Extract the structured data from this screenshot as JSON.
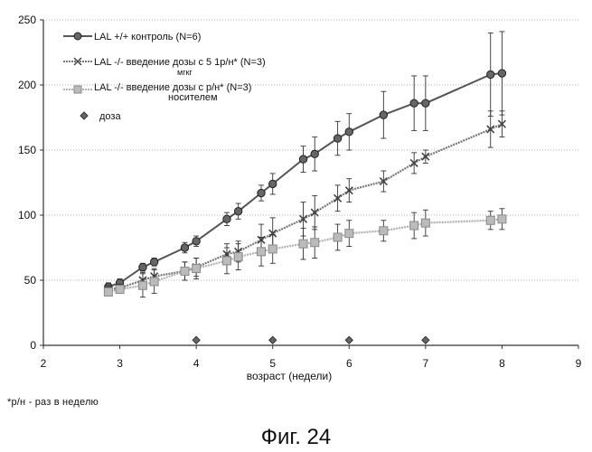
{
  "chart_data": {
    "type": "line",
    "xlabel": "возраст (недели)",
    "ylabel": "",
    "xlim": [
      2,
      9
    ],
    "ylim": [
      0,
      250
    ],
    "x_ticks": [
      2,
      3,
      4,
      5,
      6,
      7,
      8,
      9
    ],
    "y_ticks": [
      0,
      50,
      100,
      150,
      200,
      250
    ],
    "grid": "horizontal",
    "legend_position": "top-left",
    "series": [
      {
        "legend_label": "LAL +/+ контроль (N=6)",
        "color": "#555555",
        "marker": "circle",
        "points": [
          {
            "x": 2.85,
            "y": 45,
            "err": 3
          },
          {
            "x": 3.0,
            "y": 48,
            "err": 3
          },
          {
            "x": 3.3,
            "y": 60,
            "err": 3
          },
          {
            "x": 3.45,
            "y": 64,
            "err": 3
          },
          {
            "x": 3.85,
            "y": 75,
            "err": 4
          },
          {
            "x": 4.0,
            "y": 80,
            "err": 4
          },
          {
            "x": 4.4,
            "y": 97,
            "err": 5
          },
          {
            "x": 4.55,
            "y": 103,
            "err": 6
          },
          {
            "x": 4.85,
            "y": 117,
            "err": 6
          },
          {
            "x": 5.0,
            "y": 124,
            "err": 8
          },
          {
            "x": 5.4,
            "y": 143,
            "err": 10
          },
          {
            "x": 5.55,
            "y": 147,
            "err": 13
          },
          {
            "x": 5.85,
            "y": 159,
            "err": 13
          },
          {
            "x": 6.0,
            "y": 164,
            "err": 14
          },
          {
            "x": 6.45,
            "y": 177,
            "err": 18
          },
          {
            "x": 6.85,
            "y": 186,
            "err": 21
          },
          {
            "x": 7.0,
            "y": 186,
            "err": 21
          },
          {
            "x": 7.85,
            "y": 208,
            "err": 32
          },
          {
            "x": 8.0,
            "y": 209,
            "err": 32
          }
        ]
      },
      {
        "legend_label": "LAL -/- введение дозы с 5 мгкг 1р/н* (N=3)",
        "color": "#777777",
        "marker": "cross",
        "points": [
          {
            "x": 2.85,
            "y": 43,
            "err": 3
          },
          {
            "x": 3.0,
            "y": 44,
            "err": 3
          },
          {
            "x": 3.3,
            "y": 50,
            "err": 6
          },
          {
            "x": 3.45,
            "y": 53,
            "err": 6
          },
          {
            "x": 3.85,
            "y": 57,
            "err": 7
          },
          {
            "x": 4.0,
            "y": 60,
            "err": 7
          },
          {
            "x": 4.4,
            "y": 70,
            "err": 8
          },
          {
            "x": 4.55,
            "y": 72,
            "err": 8
          },
          {
            "x": 4.85,
            "y": 81,
            "err": 12
          },
          {
            "x": 5.0,
            "y": 86,
            "err": 12
          },
          {
            "x": 5.4,
            "y": 97,
            "err": 13
          },
          {
            "x": 5.55,
            "y": 102,
            "err": 13
          },
          {
            "x": 5.85,
            "y": 113,
            "err": 10
          },
          {
            "x": 6.0,
            "y": 119,
            "err": 9
          },
          {
            "x": 6.45,
            "y": 126,
            "err": 8
          },
          {
            "x": 6.85,
            "y": 140,
            "err": 8
          },
          {
            "x": 7.0,
            "y": 145,
            "err": 5
          },
          {
            "x": 7.85,
            "y": 166,
            "err": 14
          },
          {
            "x": 8.0,
            "y": 170,
            "err": 10
          }
        ]
      },
      {
        "legend_label": "LAL -/- введение дозы с носителем р/н* (N=3)",
        "color": "#b0b0b0",
        "marker": "square",
        "points": [
          {
            "x": 2.85,
            "y": 41,
            "err": 3
          },
          {
            "x": 3.0,
            "y": 43,
            "err": 3
          },
          {
            "x": 3.3,
            "y": 46,
            "err": 9
          },
          {
            "x": 3.45,
            "y": 49,
            "err": 9
          },
          {
            "x": 3.85,
            "y": 57,
            "err": 7
          },
          {
            "x": 4.0,
            "y": 59,
            "err": 8
          },
          {
            "x": 4.4,
            "y": 65,
            "err": 10
          },
          {
            "x": 4.55,
            "y": 68,
            "err": 10
          },
          {
            "x": 4.85,
            "y": 72,
            "err": 11
          },
          {
            "x": 5.0,
            "y": 74,
            "err": 11
          },
          {
            "x": 5.4,
            "y": 78,
            "err": 12
          },
          {
            "x": 5.55,
            "y": 79,
            "err": 12
          },
          {
            "x": 5.85,
            "y": 83,
            "err": 10
          },
          {
            "x": 6.0,
            "y": 86,
            "err": 10
          },
          {
            "x": 6.45,
            "y": 88,
            "err": 8
          },
          {
            "x": 6.85,
            "y": 92,
            "err": 10
          },
          {
            "x": 7.0,
            "y": 94,
            "err": 10
          },
          {
            "x": 7.85,
            "y": 96,
            "err": 7
          },
          {
            "x": 8.0,
            "y": 97,
            "err": 8
          }
        ]
      }
    ],
    "dose_markers": {
      "legend_label": "доза",
      "color": "#666666",
      "marker": "diamond",
      "x": [
        4,
        5,
        6,
        7
      ],
      "y": 4
    }
  },
  "legend": {
    "items": [
      {
        "line1": "LAL +/+ контроль (N=6)",
        "line2": ""
      },
      {
        "line1": "LAL -/-  введение дозы с 5 1р/н* (N=3)",
        "line2": "мгкг"
      },
      {
        "line1": "LAL -/-  введение дозы с р/н* (N=3)",
        "line2": "носителем"
      },
      {
        "line1": "доза",
        "line2": ""
      }
    ]
  },
  "footnote": "*р/н - раз в неделю",
  "caption": "Фиг. 24"
}
